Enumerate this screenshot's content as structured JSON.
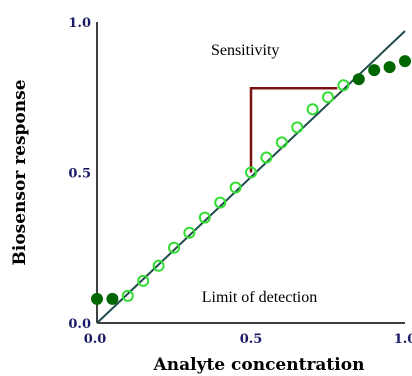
{
  "chart_data": {
    "type": "scatter",
    "title": "",
    "xlabel": "Analyte concentration",
    "ylabel": "Biosensor response",
    "xlim": [
      0,
      1
    ],
    "ylim": [
      0,
      1
    ],
    "x_ticks": [
      "0.0",
      "0.5",
      "1.0"
    ],
    "y_ticks": [
      "0.0",
      "0.5",
      "1.0"
    ],
    "grid": false,
    "reference_line": {
      "x": [
        0,
        1
      ],
      "y": [
        0,
        0.97
      ]
    },
    "series": [
      {
        "marker": "filled-circle",
        "color": "#006600",
        "x": [
          0.0,
          0.05
        ],
        "y": [
          0.08,
          0.08
        ]
      },
      {
        "marker": "open-circle",
        "color": "#33dd33",
        "x": [
          0.1,
          0.15,
          0.2,
          0.25,
          0.3,
          0.35,
          0.4,
          0.45,
          0.5,
          0.55,
          0.6,
          0.65,
          0.7,
          0.75,
          0.8
        ],
        "y": [
          0.09,
          0.14,
          0.19,
          0.25,
          0.3,
          0.35,
          0.4,
          0.45,
          0.5,
          0.55,
          0.6,
          0.65,
          0.71,
          0.75,
          0.79
        ]
      },
      {
        "marker": "filled-circle",
        "color": "#006600",
        "x": [
          0.85,
          0.9,
          0.95,
          1.0
        ],
        "y": [
          0.81,
          0.84,
          0.85,
          0.87
        ]
      }
    ],
    "sensitivity_bracket": {
      "x": [
        0.5,
        0.78
      ],
      "y": [
        0.5,
        0.78
      ],
      "color": "#7a1010"
    },
    "annotations": [
      {
        "text": "Sensitivity",
        "x": 0.37,
        "y": 0.89
      },
      {
        "text": "Limit of detection",
        "x": 0.34,
        "y": 0.07
      }
    ]
  }
}
